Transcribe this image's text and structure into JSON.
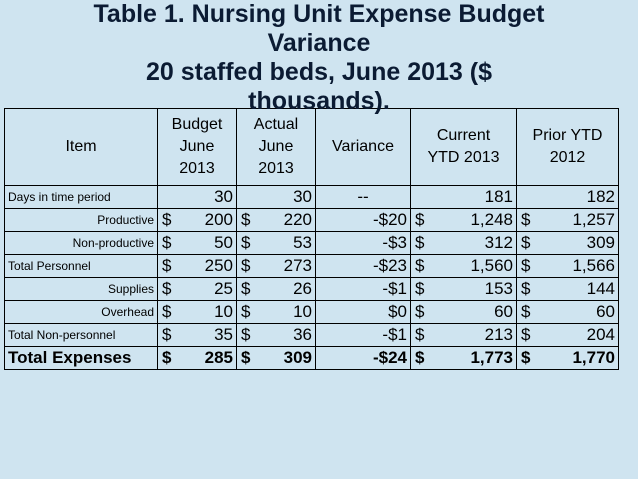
{
  "title": {
    "line1": "Table 1.  Nursing Unit Expense Budget",
    "line2": "Variance",
    "line3": "20 staffed beds, June 2013 ($",
    "line4": "thousands)."
  },
  "headers": {
    "item": "Item",
    "budget": [
      "Budget",
      "June",
      "2013"
    ],
    "actual": [
      "Actual",
      "June",
      "2013"
    ],
    "variance": "Variance",
    "current": [
      "Current",
      "YTD 2013"
    ],
    "prior": [
      "Prior YTD",
      "2012"
    ]
  },
  "rows": [
    {
      "label": "Days in time period",
      "align": "left",
      "budget_cur": "",
      "budget": "30",
      "actual_cur": "",
      "actual": "30",
      "variance": "--",
      "current_cur": "",
      "current": "181",
      "prior_cur": "",
      "prior": "182"
    },
    {
      "label": "Productive",
      "align": "right",
      "budget_cur": "$",
      "budget": "200",
      "actual_cur": "$",
      "actual": "220",
      "variance": "-$20",
      "current_cur": "$",
      "current": "1,248",
      "prior_cur": "$",
      "prior": "1,257"
    },
    {
      "label": "Non-productive",
      "align": "right",
      "budget_cur": "$",
      "budget": "50",
      "actual_cur": "$",
      "actual": "53",
      "variance": "-$3",
      "current_cur": "$",
      "current": "312",
      "prior_cur": "$",
      "prior": "309"
    },
    {
      "label": "Total Personnel",
      "align": "left",
      "budget_cur": "$",
      "budget": "250",
      "actual_cur": "$",
      "actual": "273",
      "variance": "-$23",
      "current_cur": "$",
      "current": "1,560",
      "prior_cur": "$",
      "prior": "1,566"
    },
    {
      "label": "Supplies",
      "align": "right",
      "budget_cur": "$",
      "budget": "25",
      "actual_cur": "$",
      "actual": "26",
      "variance": "-$1",
      "current_cur": "$",
      "current": "153",
      "prior_cur": "$",
      "prior": "144"
    },
    {
      "label": "Overhead",
      "align": "right",
      "budget_cur": "$",
      "budget": "10",
      "actual_cur": "$",
      "actual": "10",
      "variance": "$0",
      "current_cur": "$",
      "current": "60",
      "prior_cur": "$",
      "prior": "60"
    },
    {
      "label": "Total Non-personnel",
      "align": "left",
      "budget_cur": "$",
      "budget": "35",
      "actual_cur": "$",
      "actual": "36",
      "variance": "-$1",
      "current_cur": "$",
      "current": "213",
      "prior_cur": "$",
      "prior": "204"
    }
  ],
  "total": {
    "label": "Total Expenses",
    "budget_cur": "$",
    "budget": "285",
    "actual_cur": "$",
    "actual": "309",
    "variance": "-$24",
    "current_cur": "$",
    "current": "1,773",
    "prior_cur": "$",
    "prior": "1,770"
  },
  "colors": {
    "background": "#cfe4f0",
    "title": "#0b1b33",
    "border": "#000000"
  }
}
